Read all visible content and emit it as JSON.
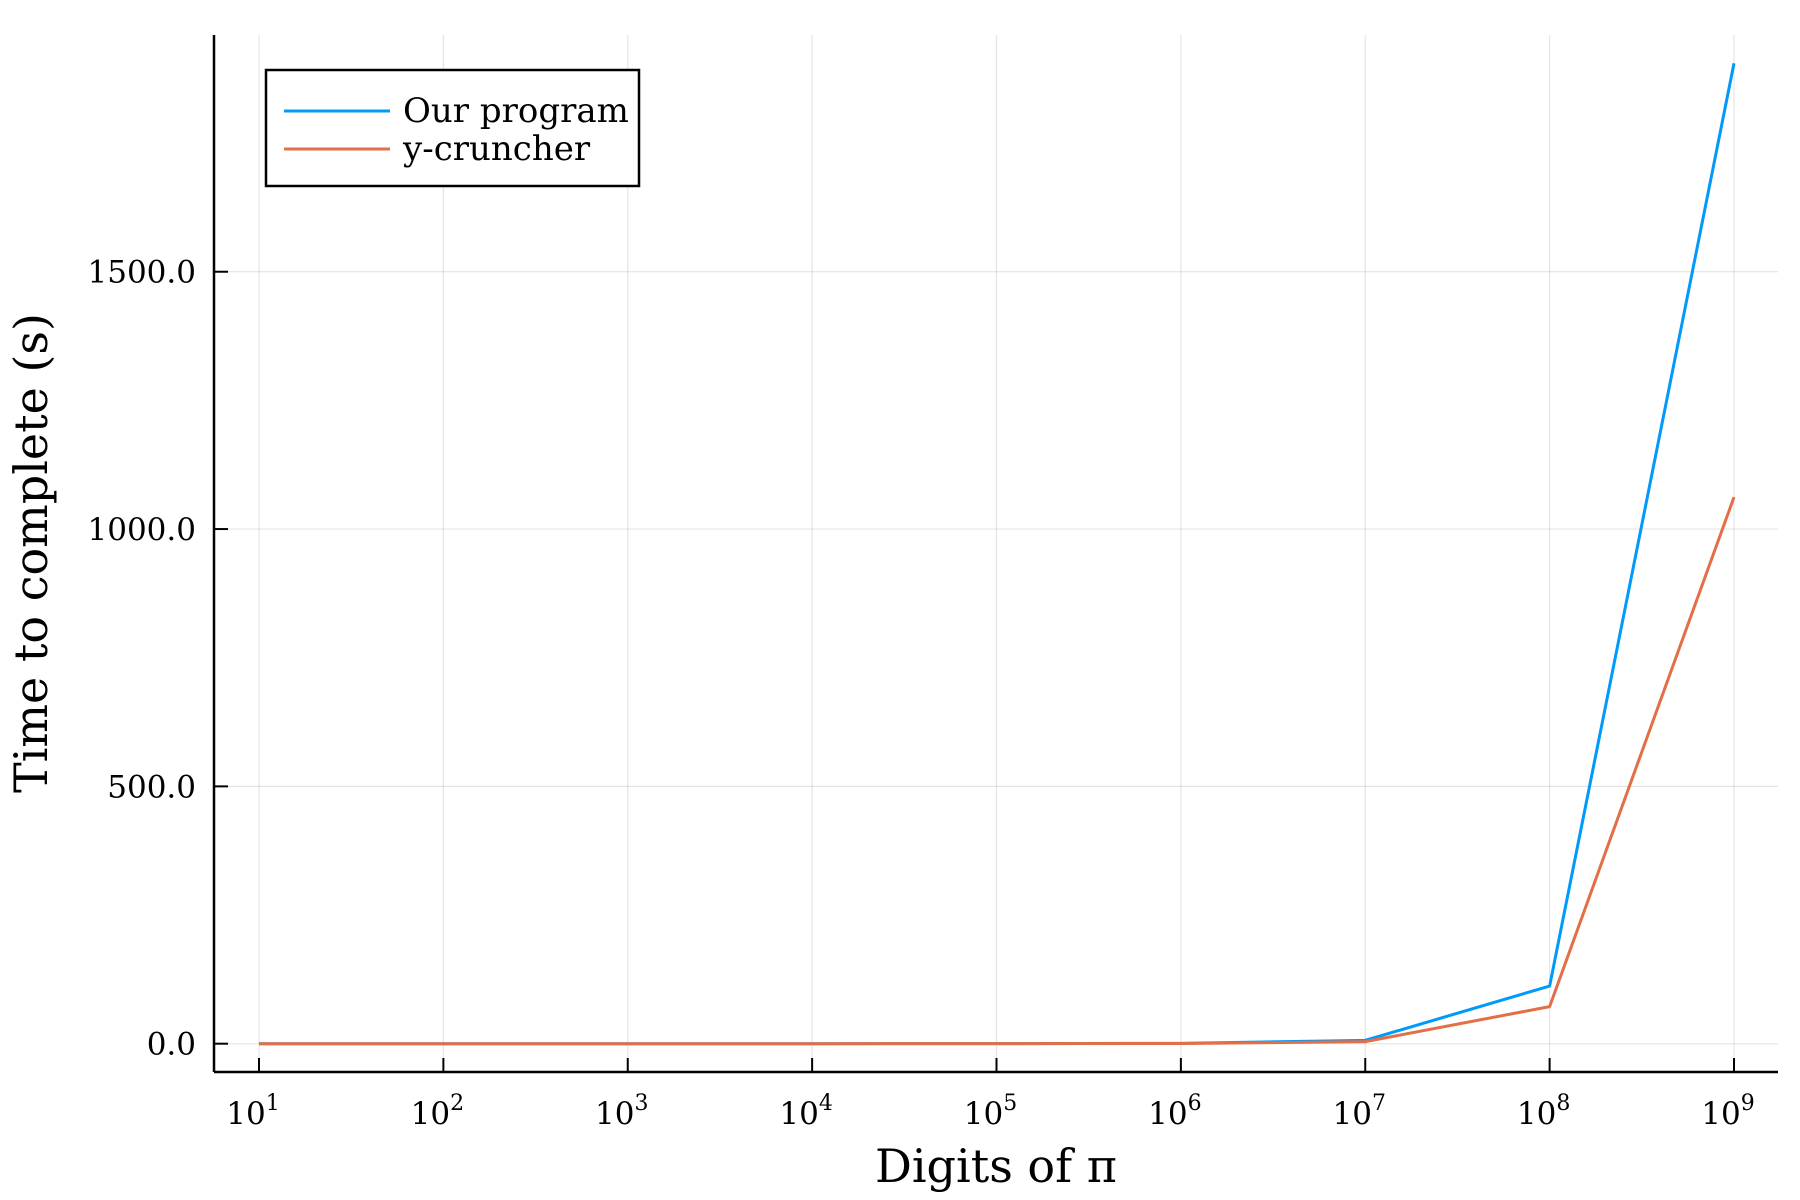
{
  "chart_data": {
    "type": "line",
    "title": "",
    "xlabel": "Digits of π",
    "ylabel": "Time to complete (s)",
    "xscale": "log",
    "x": [
      10,
      100,
      1000,
      10000,
      100000,
      1000000,
      10000000,
      100000000,
      1000000000
    ],
    "xtick_base": "10",
    "xtick_exponents": [
      "1",
      "2",
      "3",
      "4",
      "5",
      "6",
      "7",
      "8",
      "9"
    ],
    "ylim": [
      -55,
      1960
    ],
    "yticks": [
      0,
      500,
      1000,
      1500
    ],
    "ytick_labels": [
      "0.0",
      "500.0",
      "1000.0",
      "1500.0"
    ],
    "grid": true,
    "legend_position": "top-left",
    "series": [
      {
        "name": "Our program",
        "color": "#009af9",
        "values": [
          0.0,
          0.0,
          0.0,
          0.0,
          0.2,
          0.6,
          6.5,
          112,
          1905
        ]
      },
      {
        "name": "y-cruncher",
        "color": "#e26f46",
        "values": [
          0.0,
          0.0,
          0.0,
          0.0,
          0.1,
          0.4,
          4.0,
          72,
          1062
        ]
      }
    ]
  }
}
